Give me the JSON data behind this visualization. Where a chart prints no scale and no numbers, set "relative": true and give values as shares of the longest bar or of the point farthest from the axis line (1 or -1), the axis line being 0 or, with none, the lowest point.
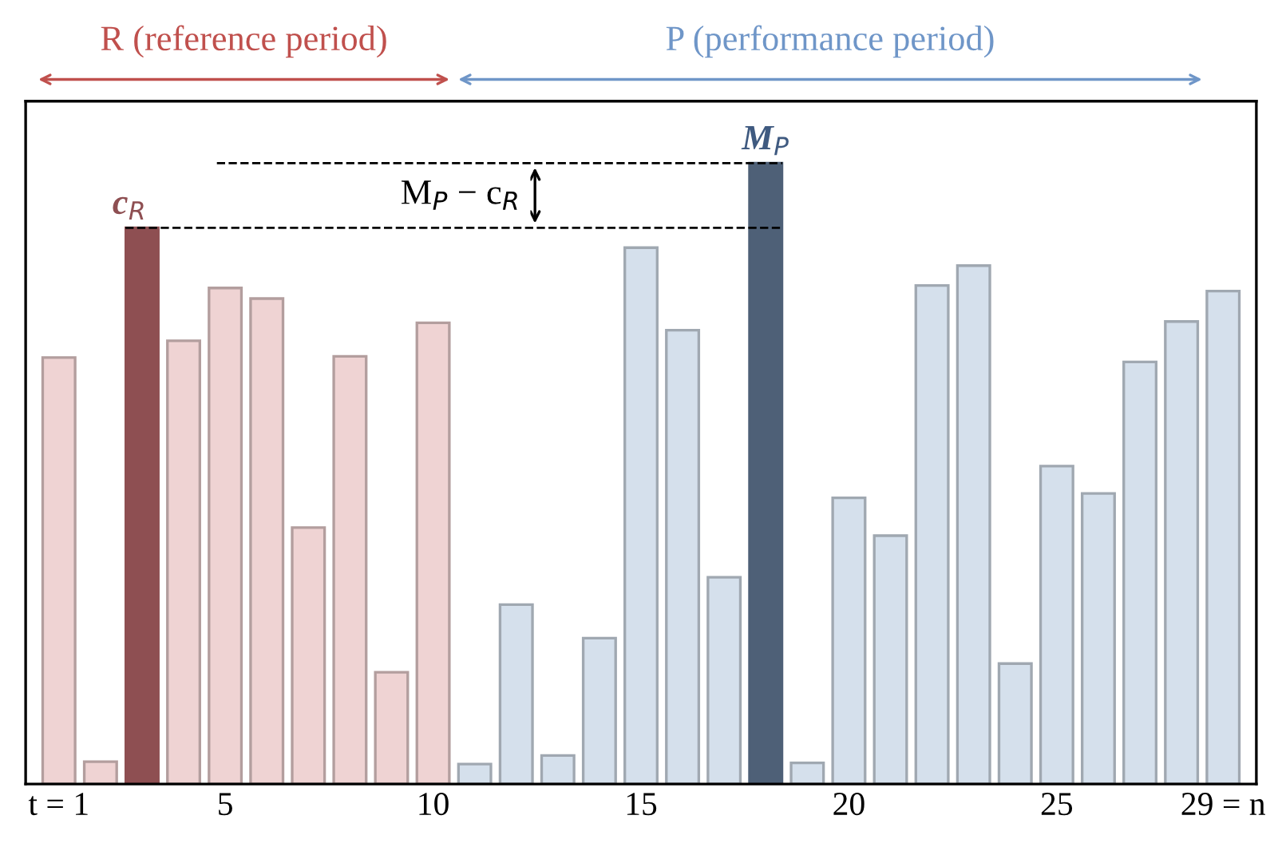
{
  "chart_data": {
    "type": "bar",
    "relative": true,
    "categories": [
      "t = 1",
      null,
      null,
      null,
      "5",
      null,
      null,
      null,
      null,
      "10",
      null,
      null,
      null,
      null,
      "15",
      null,
      null,
      null,
      null,
      "20",
      null,
      null,
      null,
      null,
      "25",
      null,
      null,
      null,
      "29 = n"
    ],
    "values": [
      0.687,
      0.036,
      0.896,
      0.714,
      0.799,
      0.782,
      0.413,
      0.689,
      0.18,
      0.743,
      0.032,
      0.289,
      0.046,
      0.235,
      0.864,
      0.731,
      0.333,
      1,
      0.034,
      0.461,
      0.4,
      0.803,
      0.835,
      0.194,
      0.512,
      0.468,
      0.68,
      0.745,
      0.794
    ],
    "colors": [
      "#efd3d3",
      "#efd3d3",
      "#8e4f52",
      "#efd3d3",
      "#efd3d3",
      "#efd3d3",
      "#efd3d3",
      "#efd3d3",
      "#efd3d3",
      "#efd3d3",
      "#d5e0ec",
      "#d5e0ec",
      "#d5e0ec",
      "#d5e0ec",
      "#d5e0ec",
      "#d5e0ec",
      "#d5e0ec",
      "#4e6077",
      "#d5e0ec",
      "#d5e0ec",
      "#d5e0ec",
      "#d5e0ec",
      "#d5e0ec",
      "#d5e0ec",
      "#d5e0ec",
      "#d5e0ec",
      "#d5e0ec",
      "#d5e0ec",
      "#d5e0ec"
    ],
    "annotations": [
      "R (reference period)",
      "P (performance period)",
      {
        "text": "c$_{R}$",
        "y": 0.896
      },
      {
        "text": "M$_{P}$",
        "y": 1
      },
      "M$_{P}$ − c$_{R}$"
    ],
    "grid": false
  }
}
